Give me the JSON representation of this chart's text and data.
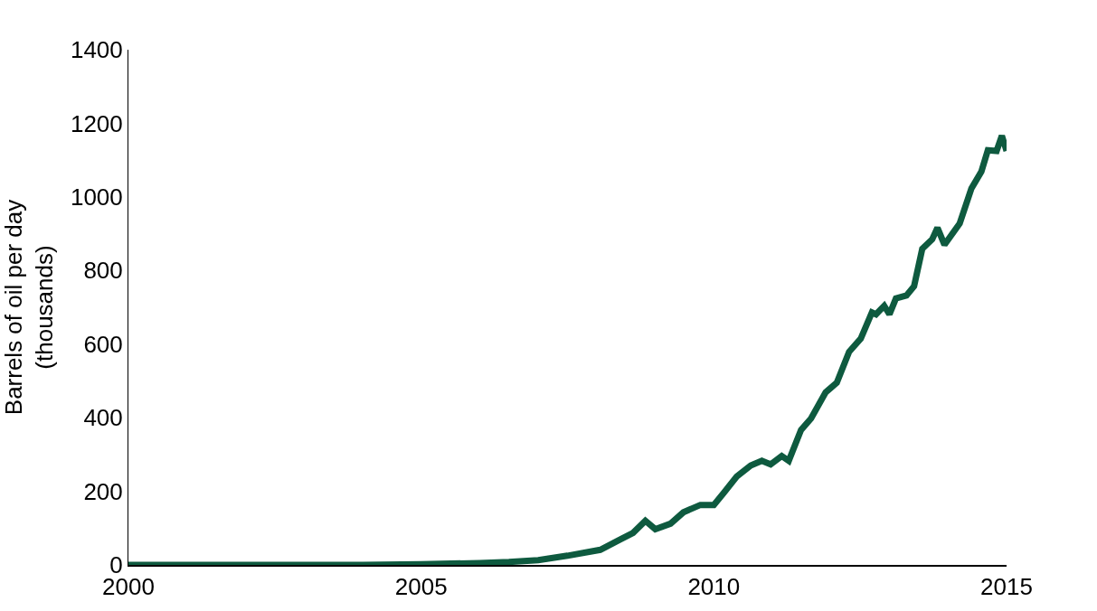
{
  "chart_data": {
    "type": "line",
    "ylabel": "Barrels of oil per day\n(thousands)",
    "xlim": [
      2000,
      2015
    ],
    "xticks": [
      2000,
      2005,
      2010,
      2015
    ],
    "ylim": [
      0,
      1400
    ],
    "yticks": [
      0,
      200,
      400,
      600,
      800,
      1000,
      1200,
      1400
    ],
    "marker": "none",
    "line_style": "solid",
    "series": [
      {
        "color": "#0e5a3f",
        "x": [
          2000,
          2002,
          2004,
          2005,
          2006,
          2006.5,
          2007,
          2007.5,
          2008.06,
          2008.4,
          2008.62,
          2008.83,
          2009.0,
          2009.26,
          2009.48,
          2009.77,
          2010.0,
          2010.17,
          2010.39,
          2010.63,
          2010.82,
          2010.97,
          2011.16,
          2011.28,
          2011.49,
          2011.66,
          2011.91,
          2012.1,
          2012.31,
          2012.51,
          2012.7,
          2012.77,
          2012.91,
          2013.0,
          2013.11,
          2013.29,
          2013.42,
          2013.56,
          2013.73,
          2013.82,
          2013.94,
          2014.2,
          2014.4,
          2014.57,
          2014.68,
          2014.83,
          2014.92,
          2015.0
        ],
        "values": [
          0,
          0,
          0,
          2,
          5,
          8,
          13,
          25,
          41,
          69,
          87,
          120,
          97,
          112,
          143,
          163,
          163,
          196,
          240,
          270,
          283,
          273,
          296,
          283,
          367,
          398,
          469,
          495,
          579,
          615,
          686,
          681,
          704,
          681,
          724,
          732,
          757,
          859,
          885,
          916,
          870,
          928,
          1023,
          1069,
          1127,
          1125,
          1166,
          1125
        ]
      }
    ]
  }
}
